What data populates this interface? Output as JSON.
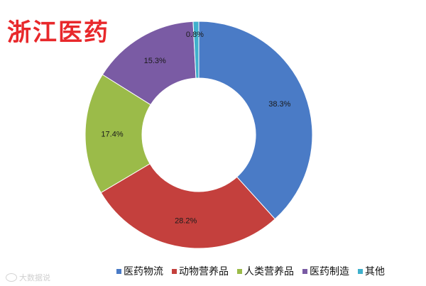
{
  "chart_data": {
    "type": "pie",
    "title": "浙江医药",
    "donut": true,
    "categories": [
      "医药物流",
      "动物营养品",
      "人类营养品",
      "医药制造",
      "其他"
    ],
    "values": [
      38.3,
      28.2,
      17.4,
      15.3,
      0.8
    ],
    "labels": [
      "38.3%",
      "28.2%",
      "17.4%",
      "15.3%",
      "0.8%"
    ],
    "colors": [
      "#4a7bc6",
      "#c4403d",
      "#9bbb49",
      "#7a5ba4",
      "#3fb0cc"
    ],
    "legend_position": "bottom"
  },
  "watermark": {
    "text": "大数据说"
  }
}
